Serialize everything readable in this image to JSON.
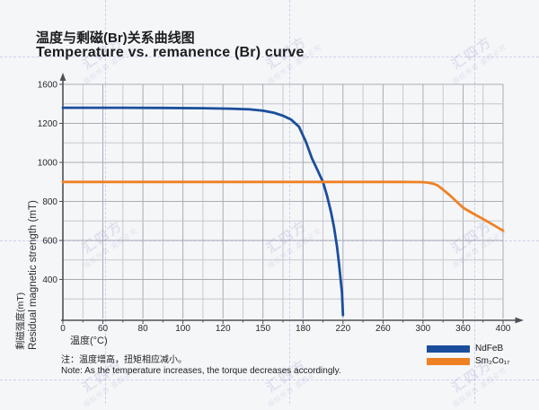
{
  "header": {
    "title_zh": "温度与剩磁(Br)关系曲线图",
    "title_en": "Temperature vs. remanence (Br) curve"
  },
  "chart_data": {
    "type": "line",
    "title": "Temperature vs. remanence (Br) curve",
    "xlabel": "温度(°C)",
    "ylabel_zh": "剩磁强度(mT)",
    "ylabel_en": "Residual magnetic strength (mT)",
    "x_ticks": [
      0,
      60,
      80,
      100,
      120,
      150,
      180,
      220,
      260,
      300,
      360,
      400
    ],
    "y_ticks": [
      1600,
      1200,
      1000,
      800,
      600,
      400
    ],
    "xlim": [
      0,
      400
    ],
    "ylim": [
      0,
      1600
    ],
    "grid": true,
    "legend_position": "bottom-right",
    "series": [
      {
        "name": "NdFeB",
        "color": "#1a4e9c",
        "points": [
          [
            0,
            1360
          ],
          [
            40,
            1360
          ],
          [
            70,
            1360
          ],
          [
            90,
            1358
          ],
          [
            110,
            1355
          ],
          [
            125,
            1351
          ],
          [
            140,
            1343
          ],
          [
            150,
            1330
          ],
          [
            158,
            1309
          ],
          [
            165,
            1278
          ],
          [
            171,
            1240
          ],
          [
            177,
            1183
          ],
          [
            183,
            1105
          ],
          [
            189,
            1020
          ],
          [
            195,
            955
          ],
          [
            200,
            900
          ],
          [
            204,
            830
          ],
          [
            208,
            745
          ],
          [
            211,
            668
          ],
          [
            214,
            570
          ],
          [
            216,
            480
          ],
          [
            218,
            360
          ],
          [
            219,
            265
          ],
          [
            220,
            35
          ]
        ]
      },
      {
        "name": "Sm₂Co₁₇",
        "color": "#ef8125",
        "points": [
          [
            0,
            900
          ],
          [
            60,
            900
          ],
          [
            120,
            900
          ],
          [
            180,
            900
          ],
          [
            240,
            900
          ],
          [
            280,
            900
          ],
          [
            300,
            899
          ],
          [
            308,
            896
          ],
          [
            315,
            891
          ],
          [
            322,
            882
          ],
          [
            330,
            860
          ],
          [
            340,
            832
          ],
          [
            350,
            800
          ],
          [
            360,
            768
          ],
          [
            370,
            738
          ],
          [
            380,
            710
          ],
          [
            390,
            680
          ],
          [
            400,
            650
          ]
        ]
      }
    ]
  },
  "note": {
    "zh": "注：温度增高，扭矩相应减小。",
    "en": "Note: As the temperature increases, the torque decreases accordingly."
  },
  "watermark": {
    "main": "汇四方",
    "sub": "版权所有 盗图必究"
  }
}
